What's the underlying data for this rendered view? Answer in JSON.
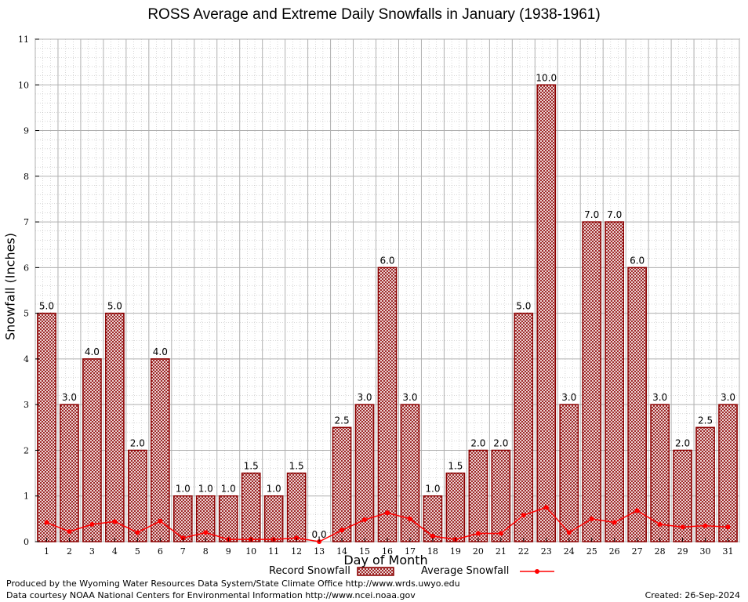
{
  "page": {
    "title": "ROSS Average and Extreme Daily Snowfalls in January (1938-1961)",
    "footer_left_1": "Produced by the Wyoming Water Resources Data System/State Climate Office http://www.wrds.uwyo.edu",
    "footer_left_2": "Data courtesy NOAA National Centers for Environmental Information http://www.ncei.noaa.gov",
    "footer_right": "Created:  26-Sep-2024"
  },
  "chart_data": {
    "type": "bar",
    "title": "ROSS Average and Extreme Daily Snowfalls in January (1938-1961)",
    "xlabel": "Day of Month",
    "ylabel": "Snowfall (Inches)",
    "ylim": [
      0,
      11
    ],
    "yticks": [
      0,
      1,
      2,
      3,
      4,
      5,
      6,
      7,
      8,
      9,
      10,
      11
    ],
    "grid": true,
    "legend_position": "bottom",
    "colors": {
      "bar_edge": "#8b0000",
      "bar_fill": "#c9a7a7",
      "line": "#ff0000",
      "grid": "#b0b0b0"
    },
    "categories": [
      "1",
      "2",
      "3",
      "4",
      "5",
      "6",
      "7",
      "8",
      "9",
      "10",
      "11",
      "12",
      "13",
      "14",
      "15",
      "16",
      "17",
      "18",
      "19",
      "20",
      "21",
      "22",
      "23",
      "24",
      "25",
      "26",
      "27",
      "28",
      "29",
      "30",
      "31"
    ],
    "series": [
      {
        "name": "Record Snowfall",
        "type": "bar",
        "values": [
          5.0,
          3.0,
          4.0,
          5.0,
          2.0,
          4.0,
          1.0,
          1.0,
          1.0,
          1.5,
          1.0,
          1.5,
          0.0,
          2.5,
          3.0,
          6.0,
          3.0,
          1.0,
          1.5,
          2.0,
          2.0,
          5.0,
          10.0,
          3.0,
          7.0,
          7.0,
          6.0,
          3.0,
          2.0,
          2.5,
          3.0
        ],
        "labels": [
          "5.0",
          "3.0",
          "4.0",
          "5.0",
          "2.0",
          "4.0",
          "1.0",
          "1.0",
          "1.0",
          "1.5",
          "1.0",
          "1.5",
          "0.0",
          "2.5",
          "3.0",
          "6.0",
          "3.0",
          "1.0",
          "1.5",
          "2.0",
          "2.0",
          "5.0",
          "10.0",
          "3.0",
          "7.0",
          "7.0",
          "6.0",
          "3.0",
          "2.0",
          "2.5",
          "3.0"
        ]
      },
      {
        "name": "Average Snowfall",
        "type": "line",
        "values": [
          0.42,
          0.22,
          0.38,
          0.44,
          0.2,
          0.45,
          0.08,
          0.2,
          0.05,
          0.05,
          0.05,
          0.08,
          0.0,
          0.25,
          0.48,
          0.63,
          0.5,
          0.12,
          0.05,
          0.18,
          0.18,
          0.58,
          0.75,
          0.2,
          0.5,
          0.42,
          0.68,
          0.38,
          0.32,
          0.35,
          0.32
        ]
      }
    ]
  }
}
